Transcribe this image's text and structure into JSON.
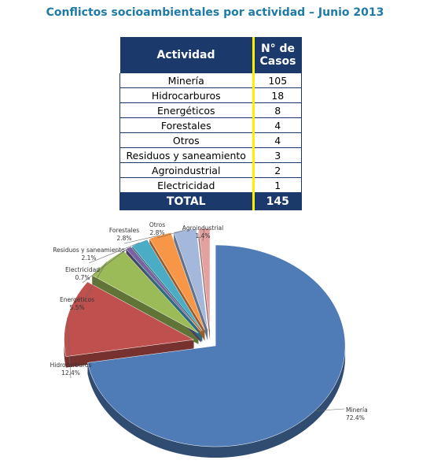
{
  "title": "Conflictos socioambientales por actividad – Junio 2013",
  "table": {
    "header": [
      "Actividad",
      "N° de Casos"
    ],
    "rows": [
      [
        "Minería",
        105
      ],
      [
        "Hidrocarburos",
        18
      ],
      [
        "Energéticos",
        8
      ],
      [
        "Forestales",
        4
      ],
      [
        "Otros",
        4
      ],
      [
        "Residuos y saneamiento",
        3
      ],
      [
        "Agroindustrial",
        2
      ],
      [
        "Electricidad",
        1
      ]
    ],
    "total": [
      "TOTAL",
      145
    ]
  },
  "chart_data": {
    "type": "pie",
    "categories": [
      "Minería",
      "Hidrocarburos",
      "Energéticos",
      "Electricidad",
      "Residuos y saneamiento",
      "Forestales",
      "Otros",
      "Agroindustrial"
    ],
    "values": [
      72.4,
      12.4,
      5.5,
      0.7,
      2.1,
      2.8,
      2.8,
      1.4
    ],
    "value_labels": [
      "72.4%",
      "12.4%",
      "5.5%",
      "0.7%",
      "2.1%",
      "2.8%",
      "2.8%",
      "1.4%"
    ],
    "colors": [
      "#4f7bb6",
      "#c0504d",
      "#9bbb59",
      "#7a62a0",
      "#4bacc6",
      "#f79646",
      "#a4b8dc",
      "#e5a0a0"
    ]
  }
}
